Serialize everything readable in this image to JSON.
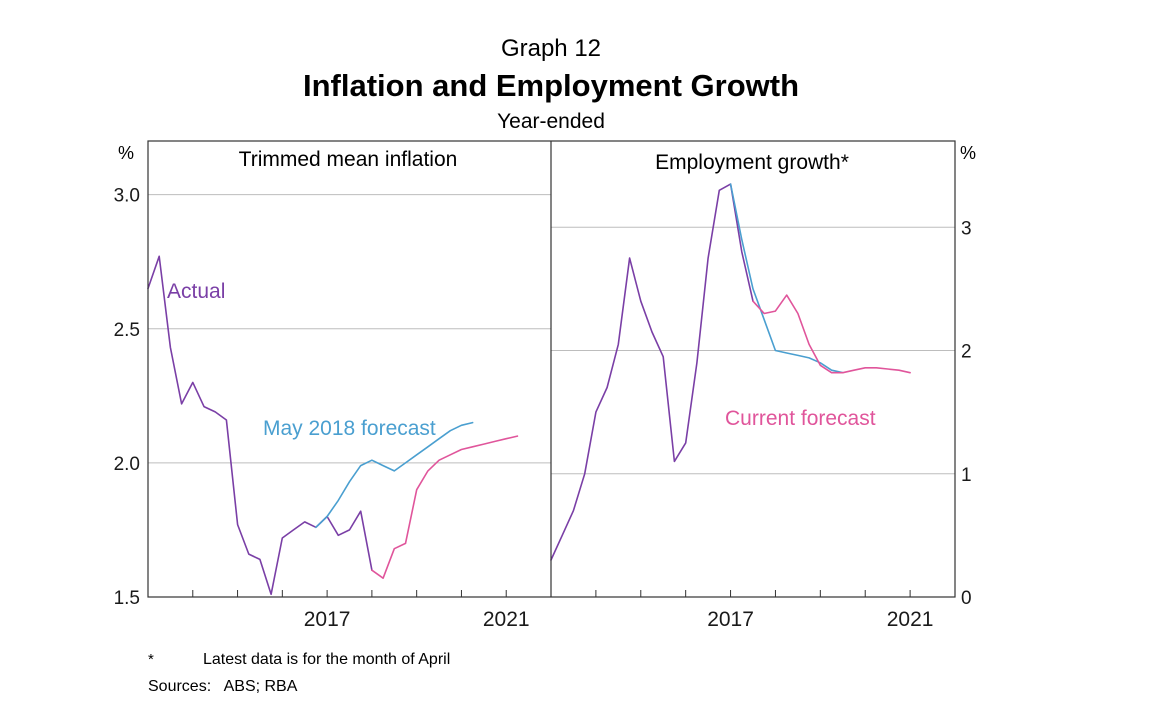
{
  "header": {
    "graph_number": "Graph 12",
    "title": "Inflation and Employment Growth",
    "subtitle": "Year-ended"
  },
  "footer": {
    "note_marker": "*",
    "note_text": "Latest data is for the month of April",
    "sources": "Sources:   ABS; RBA"
  },
  "colors": {
    "actual": "#7a3fa6",
    "may2018_forecast": "#4a9fd0",
    "current_forecast": "#e0559b",
    "grid": "#bdbdbd",
    "frame": "#333333"
  },
  "chart_data": [
    {
      "type": "line",
      "panel_title": "Trimmed mean inflation",
      "y_unit_label": "%",
      "ylim": [
        1.5,
        3.2
      ],
      "y_ticks": [
        1.5,
        2.0,
        2.5,
        3.0
      ],
      "y_tick_labels": [
        "1.5",
        "2.0",
        "2.5",
        "3.0"
      ],
      "xlim": [
        2013.0,
        2022.0
      ],
      "x_tick_labels": [
        {
          "x": 2017,
          "label": "2017"
        },
        {
          "x": 2021,
          "label": "2021"
        }
      ],
      "annotations": {
        "actual": "Actual",
        "may2018": "May 2018 forecast"
      },
      "series": [
        {
          "name": "Actual",
          "color_key": "actual",
          "x": [
            2013.0,
            2013.25,
            2013.5,
            2013.75,
            2014.0,
            2014.25,
            2014.5,
            2014.75,
            2015.0,
            2015.25,
            2015.5,
            2015.75,
            2016.0,
            2016.25,
            2016.5,
            2016.75,
            2017.0,
            2017.25,
            2017.5,
            2017.75,
            2018.0
          ],
          "y": [
            2.65,
            2.77,
            2.43,
            2.22,
            2.3,
            2.21,
            2.19,
            2.16,
            1.77,
            1.66,
            1.64,
            1.51,
            1.72,
            1.75,
            1.78,
            1.76,
            1.8,
            1.73,
            1.75,
            1.82,
            1.6
          ]
        },
        {
          "name": "May 2018 forecast",
          "color_key": "may2018_forecast",
          "x": [
            2016.75,
            2017.0,
            2017.25,
            2017.5,
            2017.75,
            2018.0,
            2018.25,
            2018.5,
            2018.75,
            2019.0,
            2019.25,
            2019.5,
            2019.75,
            2020.0,
            2020.25
          ],
          "y": [
            1.76,
            1.8,
            1.86,
            1.93,
            1.99,
            2.01,
            1.99,
            1.97,
            2.0,
            2.03,
            2.06,
            2.09,
            2.12,
            2.14,
            2.15
          ]
        },
        {
          "name": "Current forecast",
          "color_key": "current_forecast",
          "x": [
            2018.0,
            2018.25,
            2018.5,
            2018.75,
            2019.0,
            2019.25,
            2019.5,
            2019.75,
            2020.0,
            2020.25,
            2020.5,
            2020.75,
            2021.0,
            2021.25
          ],
          "y": [
            1.6,
            1.57,
            1.68,
            1.7,
            1.9,
            1.97,
            2.01,
            2.03,
            2.05,
            2.06,
            2.07,
            2.08,
            2.09,
            2.1
          ]
        }
      ]
    },
    {
      "type": "line",
      "panel_title": "Employment growth*",
      "y_unit_label": "%",
      "ylim": [
        0,
        3.7
      ],
      "y_ticks": [
        0,
        1,
        2,
        3
      ],
      "y_tick_labels": [
        "0",
        "1",
        "2",
        "3"
      ],
      "xlim": [
        2013.0,
        2022.0
      ],
      "x_tick_labels": [
        {
          "x": 2017,
          "label": "2017"
        },
        {
          "x": 2021,
          "label": "2021"
        }
      ],
      "annotations": {
        "current": "Current forecast"
      },
      "series": [
        {
          "name": "Actual",
          "color_key": "actual",
          "x": [
            2013.0,
            2013.25,
            2013.5,
            2013.75,
            2014.0,
            2014.25,
            2014.5,
            2014.75,
            2015.0,
            2015.25,
            2015.5,
            2015.75,
            2016.0,
            2016.25,
            2016.5,
            2016.75,
            2017.0,
            2017.25,
            2017.5
          ],
          "y": [
            0.3,
            0.5,
            0.7,
            1.0,
            1.5,
            1.7,
            2.05,
            2.75,
            2.4,
            2.15,
            1.95,
            1.1,
            1.25,
            1.9,
            2.75,
            3.3,
            3.35,
            2.8,
            2.4
          ]
        },
        {
          "name": "May 2018 forecast",
          "color_key": "may2018_forecast",
          "x": [
            2017.0,
            2017.25,
            2017.5,
            2017.75,
            2018.0,
            2018.25,
            2018.5,
            2018.75,
            2019.0,
            2019.25,
            2019.5
          ],
          "y": [
            3.35,
            2.9,
            2.5,
            2.25,
            2.0,
            1.98,
            1.96,
            1.94,
            1.9,
            1.84,
            1.82
          ]
        },
        {
          "name": "Current forecast",
          "color_key": "current_forecast",
          "x": [
            2017.5,
            2017.75,
            2018.0,
            2018.25,
            2018.5,
            2018.75,
            2019.0,
            2019.25,
            2019.5,
            2019.75,
            2020.0,
            2020.25,
            2020.5,
            2020.75,
            2021.0
          ],
          "y": [
            2.4,
            2.3,
            2.32,
            2.45,
            2.3,
            2.05,
            1.88,
            1.82,
            1.82,
            1.84,
            1.86,
            1.86,
            1.85,
            1.84,
            1.82
          ]
        }
      ]
    }
  ]
}
